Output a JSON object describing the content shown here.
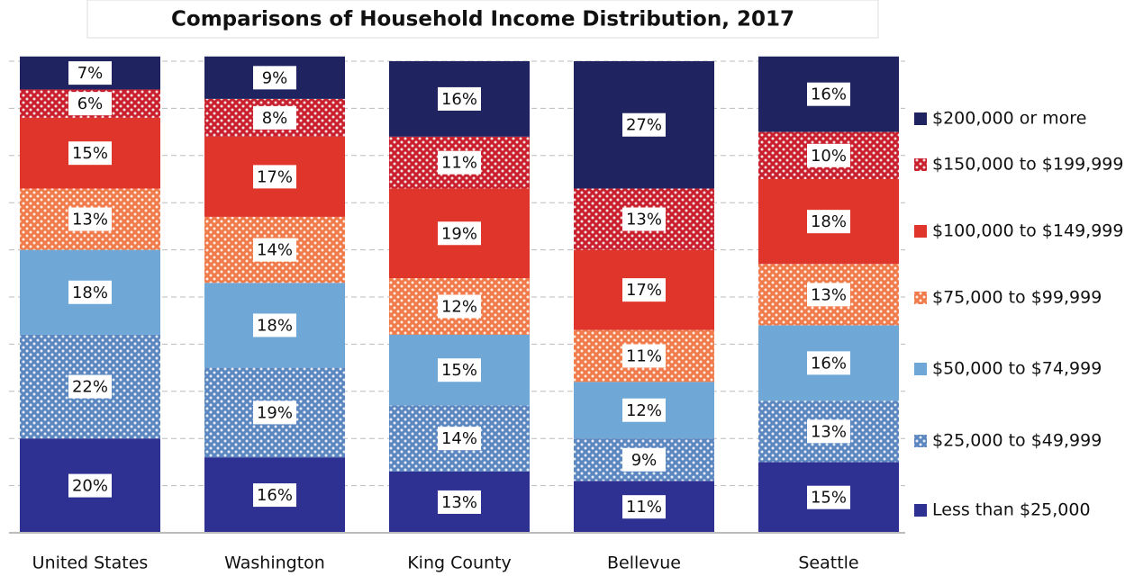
{
  "chart_data": {
    "type": "stacked_bar",
    "title": "Comparisons of Household Income Distribution, 2017",
    "categories": [
      "United States",
      "Washington",
      "King County",
      "Bellevue",
      "Seattle"
    ],
    "ylim": [
      0,
      100
    ],
    "yticks": [
      0,
      10,
      20,
      30,
      40,
      50,
      60,
      70,
      80,
      90,
      100
    ],
    "grid": true,
    "legend": "right",
    "series": [
      {
        "name": "Less than $25,000",
        "color": "#2e3192",
        "patterned": false,
        "values": [
          20,
          16,
          13,
          11,
          15
        ],
        "value_labels": [
          "20%",
          "16%",
          "13%",
          "11%",
          "15%"
        ]
      },
      {
        "name": "$25,000 to $49,999",
        "color": "#5b86c0",
        "patterned": true,
        "values": [
          22,
          19,
          14,
          9,
          13
        ],
        "value_labels": [
          "22%",
          "19%",
          "14%",
          "9%",
          "13%"
        ]
      },
      {
        "name": "$50,000 to $74,999",
        "color": "#6fa8d6",
        "patterned": false,
        "values": [
          18,
          18,
          15,
          12,
          16
        ],
        "value_labels": [
          "18%",
          "18%",
          "15%",
          "12%",
          "16%"
        ]
      },
      {
        "name": "$75,000 to $99,999",
        "color": "#f07a4a",
        "patterned": true,
        "values": [
          13,
          14,
          12,
          11,
          13
        ],
        "value_labels": [
          "13%",
          "14%",
          "12%",
          "11%",
          "13%"
        ]
      },
      {
        "name": "$100,000 to $149,999",
        "color": "#e0352b",
        "patterned": false,
        "values": [
          15,
          17,
          19,
          17,
          18
        ],
        "value_labels": [
          "15%",
          "17%",
          "19%",
          "17%",
          "18%"
        ]
      },
      {
        "name": "$150,000 to $199,999",
        "color": "#c8202e",
        "patterned": true,
        "values": [
          6,
          8,
          11,
          13,
          10
        ],
        "value_labels": [
          "6%",
          "8%",
          "11%",
          "13%",
          "10%"
        ]
      },
      {
        "name": "$200,000 or more",
        "color": "#1f2461",
        "patterned": false,
        "values": [
          7,
          9,
          16,
          27,
          16
        ],
        "value_labels": [
          "7%",
          "9%",
          "16%",
          "27%",
          "16%"
        ]
      }
    ]
  }
}
